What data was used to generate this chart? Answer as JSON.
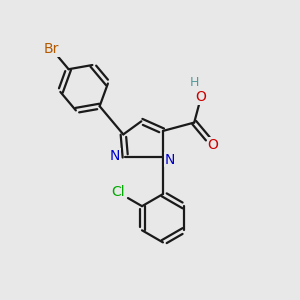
{
  "bg_color": "#e8e8e8",
  "bond_color": "#1a1a1a",
  "bond_width": 1.6,
  "atom_colors": {
    "Br": "#b35900",
    "N": "#0000cc",
    "O": "#cc0000",
    "Cl": "#00aa00",
    "H": "#559999",
    "C": "#1a1a1a"
  },
  "font_size": 11
}
